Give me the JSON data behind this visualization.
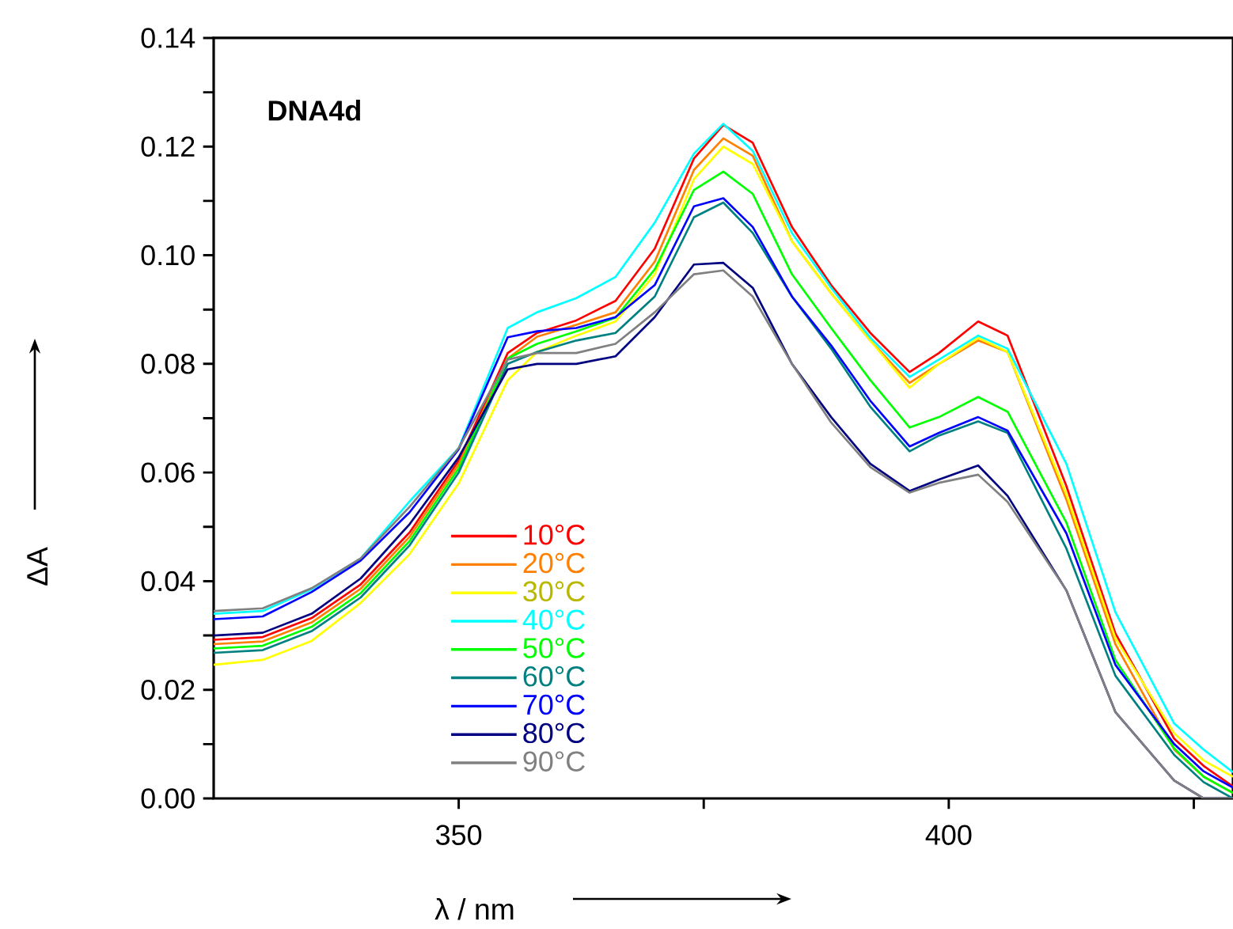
{
  "chart_data": {
    "type": "line",
    "xlabel": "λ / nm",
    "ylabel": "ΔA",
    "annotations": [
      "DNA4d"
    ],
    "x": [
      325,
      330,
      335,
      340,
      345,
      350,
      355,
      358,
      362,
      366,
      370,
      374,
      377,
      380,
      384,
      388,
      392,
      396,
      399,
      403,
      406,
      412,
      417,
      423,
      426,
      429
    ],
    "xlim": [
      325,
      429
    ],
    "ylim": [
      0,
      0.14
    ],
    "xticks": [
      {
        "value": 350,
        "label": "350"
      },
      {
        "value": 375,
        "label": null
      },
      {
        "value": 400,
        "label": "400"
      },
      {
        "value": 425,
        "label": null
      }
    ],
    "yticks": [
      {
        "value": 0,
        "label": "0.00"
      },
      {
        "value": 0.01,
        "label": null
      },
      {
        "value": 0.02,
        "label": "0.02"
      },
      {
        "value": 0.03,
        "label": null
      },
      {
        "value": 0.04,
        "label": "0.04"
      },
      {
        "value": 0.05,
        "label": null
      },
      {
        "value": 0.06,
        "label": "0.06"
      },
      {
        "value": 0.07,
        "label": null
      },
      {
        "value": 0.08,
        "label": "0.08"
      },
      {
        "value": 0.09,
        "label": null
      },
      {
        "value": 0.1,
        "label": "0.10"
      },
      {
        "value": 0.11,
        "label": null
      },
      {
        "value": 0.12,
        "label": "0.12"
      },
      {
        "value": 0.13,
        "label": null
      },
      {
        "value": 0.14,
        "label": "0.14"
      }
    ],
    "legend": "bottom",
    "line_style": "solid",
    "series": [
      {
        "name": "10°C",
        "color": "#ff0000",
        "values": [
          0.0292,
          0.0297,
          0.0332,
          0.0394,
          0.049,
          0.0622,
          0.082,
          0.0857,
          0.088,
          0.0916,
          0.1012,
          0.1178,
          0.124,
          0.1207,
          0.1052,
          0.0945,
          0.0857,
          0.0785,
          0.082,
          0.0878,
          0.0852,
          0.0575,
          0.0304,
          0.011,
          0.006,
          0.0022
        ]
      },
      {
        "name": "20°C",
        "color": "#ff8000",
        "values": [
          0.0284,
          0.0289,
          0.0324,
          0.0386,
          0.0482,
          0.0615,
          0.081,
          0.085,
          0.0872,
          0.0895,
          0.0988,
          0.1157,
          0.1215,
          0.1183,
          0.1026,
          0.093,
          0.0843,
          0.0765,
          0.08,
          0.0843,
          0.0822,
          0.055,
          0.0284,
          0.009,
          0.004,
          0.001
        ]
      },
      {
        "name": "30°C",
        "color": "#ffff00",
        "values": [
          0.0246,
          0.0255,
          0.029,
          0.036,
          0.045,
          0.058,
          0.077,
          0.0822,
          0.0852,
          0.0878,
          0.0965,
          0.114,
          0.12,
          0.1168,
          0.1026,
          0.093,
          0.0843,
          0.0756,
          0.08,
          0.0848,
          0.0822,
          0.056,
          0.0295,
          0.012,
          0.007,
          0.004
        ]
      },
      {
        "name": "40°C",
        "color": "#00ffff",
        "values": [
          0.034,
          0.0345,
          0.0385,
          0.0442,
          0.0547,
          0.0645,
          0.0866,
          0.0895,
          0.0921,
          0.096,
          0.106,
          0.1187,
          0.1242,
          0.1192,
          0.1041,
          0.094,
          0.0848,
          0.0776,
          0.0808,
          0.0852,
          0.0828,
          0.0616,
          0.0343,
          0.0138,
          0.009,
          0.0048
        ]
      },
      {
        "name": "50°C",
        "color": "#00ff00",
        "values": [
          0.0276,
          0.0281,
          0.0316,
          0.0378,
          0.0474,
          0.0608,
          0.081,
          0.0837,
          0.086,
          0.0885,
          0.0974,
          0.112,
          0.1154,
          0.1113,
          0.0965,
          0.0866,
          0.077,
          0.0683,
          0.0702,
          0.0739,
          0.0712,
          0.0508,
          0.0255,
          0.0092,
          0.004,
          0.001
        ]
      },
      {
        "name": "60°C",
        "color": "#008080",
        "values": [
          0.0268,
          0.0273,
          0.0308,
          0.037,
          0.0466,
          0.06,
          0.08,
          0.0822,
          0.0843,
          0.0857,
          0.0924,
          0.107,
          0.1097,
          0.1041,
          0.0924,
          0.0828,
          0.0721,
          0.0639,
          0.0668,
          0.0694,
          0.0673,
          0.046,
          0.0226,
          0.008,
          0.003,
          0.0
        ]
      },
      {
        "name": "70°C",
        "color": "#0000ff",
        "values": [
          0.033,
          0.0335,
          0.038,
          0.0438,
          0.0527,
          0.0643,
          0.0849,
          0.086,
          0.0866,
          0.0886,
          0.0945,
          0.109,
          0.1105,
          0.1052,
          0.0924,
          0.0834,
          0.0732,
          0.0648,
          0.0673,
          0.0702,
          0.0677,
          0.0488,
          0.0246,
          0.01,
          0.005,
          0.002
        ]
      },
      {
        "name": "80°C",
        "color": "#000080",
        "values": [
          0.03,
          0.0305,
          0.034,
          0.0405,
          0.0505,
          0.0628,
          0.079,
          0.08,
          0.08,
          0.0814,
          0.0886,
          0.0983,
          0.0986,
          0.094,
          0.08,
          0.0702,
          0.0616,
          0.0566,
          0.0587,
          0.0613,
          0.0557,
          0.0383,
          0.0159,
          0.0033,
          0.0,
          0.0
        ]
      },
      {
        "name": "90°C",
        "color": "#808080",
        "values": [
          0.0345,
          0.035,
          0.0387,
          0.0442,
          0.0537,
          0.0645,
          0.0808,
          0.082,
          0.082,
          0.0837,
          0.0895,
          0.0965,
          0.0972,
          0.0924,
          0.08,
          0.0692,
          0.061,
          0.0563,
          0.0581,
          0.0596,
          0.0546,
          0.0383,
          0.0159,
          0.0033,
          0.0,
          0.0
        ]
      }
    ]
  }
}
